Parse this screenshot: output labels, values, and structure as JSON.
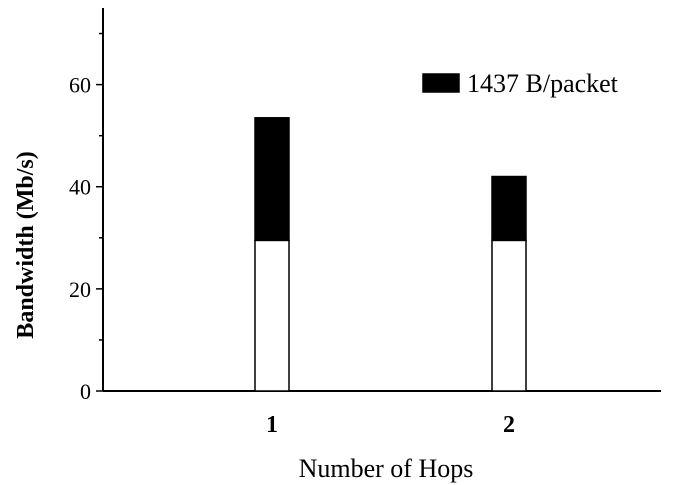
{
  "chart_data": {
    "type": "bar",
    "stacked": true,
    "categories": [
      "1",
      "2"
    ],
    "series": [
      {
        "values": [
          29.5,
          29.5
        ],
        "color": "#ffffff"
      },
      {
        "name": "1437 B/packet",
        "values": [
          24.0,
          12.5
        ],
        "color": "#000000"
      }
    ],
    "xlabel": "Number of Hops",
    "ylabel": "Bandwidth (Mb/s)",
    "ylim": [
      0,
      75
    ],
    "yticks": [
      0,
      20,
      40,
      60
    ],
    "yticks_minor": [
      10,
      30,
      50,
      70
    ],
    "grid": false,
    "legend_position": "top-right"
  }
}
